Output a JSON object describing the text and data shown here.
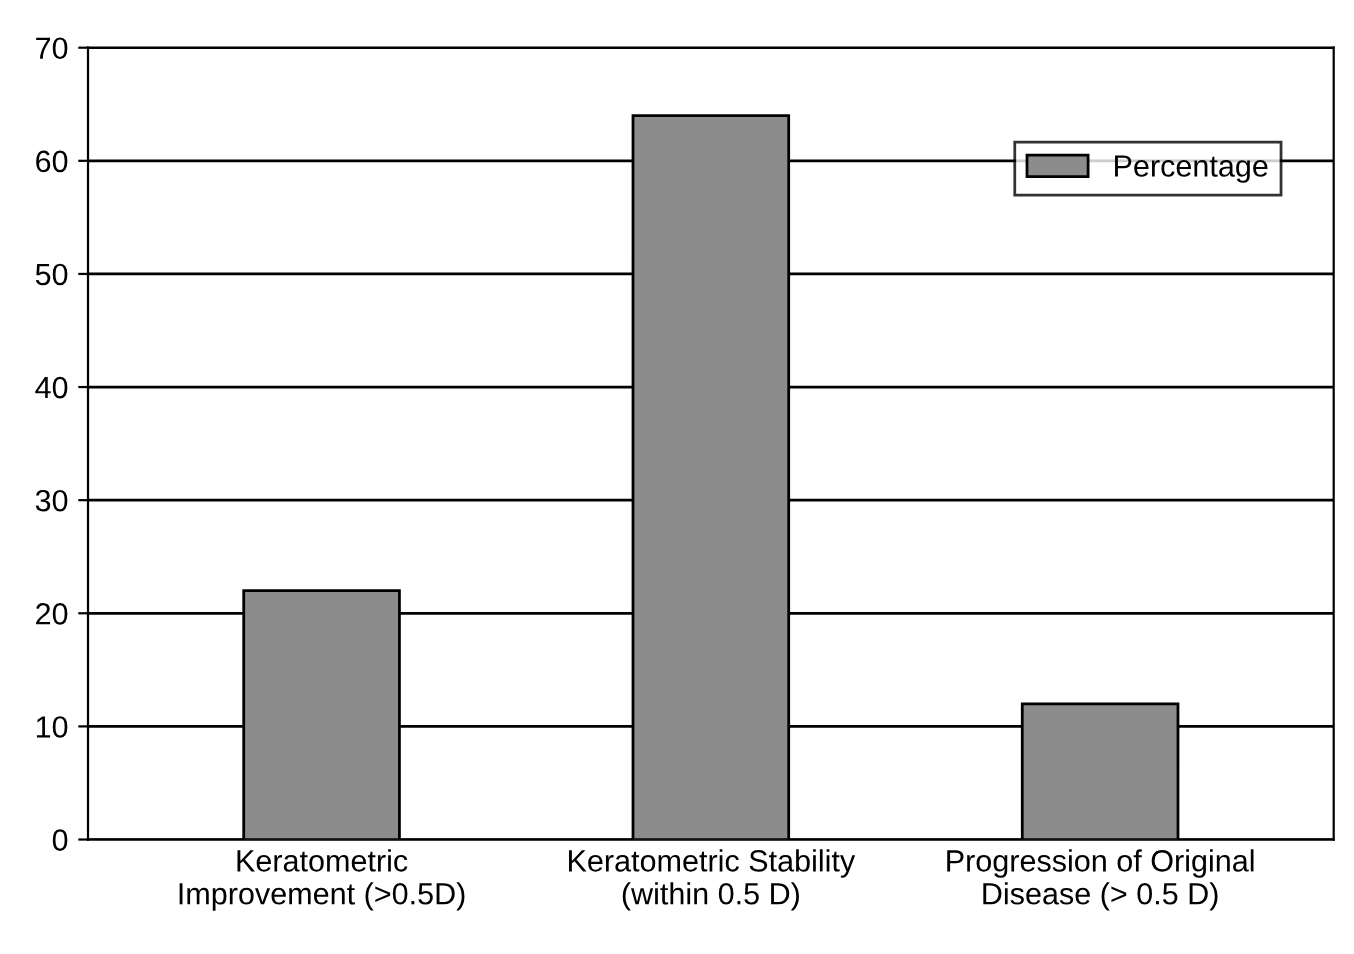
{
  "chart_data": {
    "type": "bar",
    "categories": [
      "Keratometric\nImprovement (>0.5D)",
      "Keratometric Stability\n(within 0.5 D)",
      "Progression of Original\nDisease (> 0.5 D)"
    ],
    "series": [
      {
        "name": "Percentage",
        "color": "#8c8c8c",
        "values": [
          22,
          64,
          12
        ]
      }
    ],
    "ylim": [
      0,
      70
    ],
    "yticks": [
      0,
      10,
      20,
      30,
      40,
      50,
      60,
      70
    ],
    "grid": "y",
    "legend": "top right"
  }
}
